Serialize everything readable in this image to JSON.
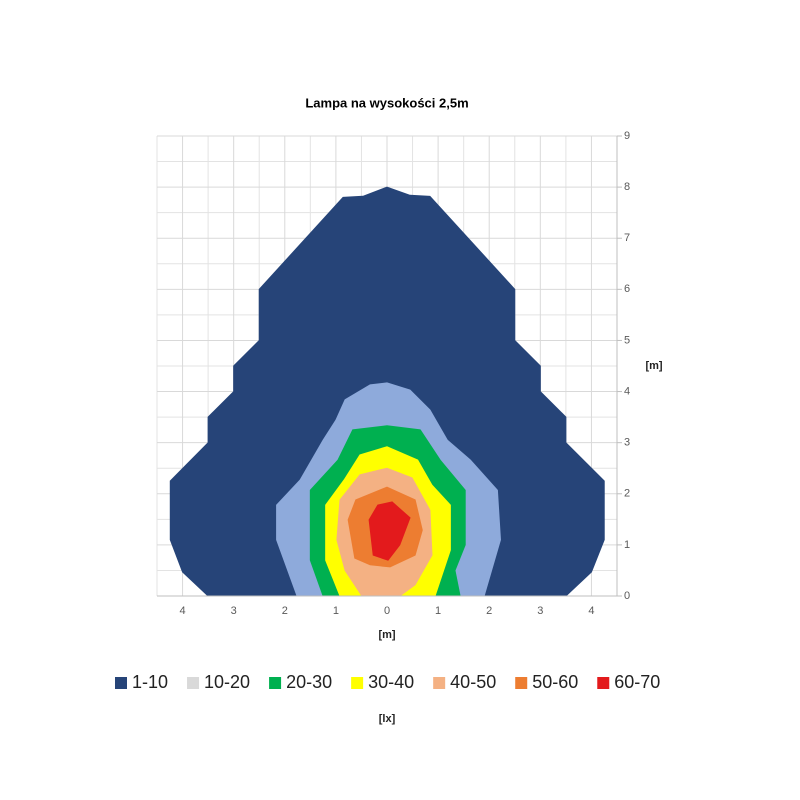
{
  "chart_data": {
    "type": "contour",
    "title": "Lampa na wysokości 2,5m",
    "x_label": "[m]",
    "y_label": "[m]",
    "legend_title": "[lx]",
    "xlim": [
      -4.5,
      4.5
    ],
    "ylim": [
      0,
      9
    ],
    "xticks": [
      {
        "value": -4,
        "label": "4"
      },
      {
        "value": -3,
        "label": "3"
      },
      {
        "value": -2,
        "label": "2"
      },
      {
        "value": -1,
        "label": "1"
      },
      0,
      1,
      2,
      3,
      4
    ],
    "yticks": [
      0,
      1,
      2,
      3,
      4,
      5,
      6,
      7,
      8,
      9
    ],
    "grid": true,
    "minor_grid": true,
    "legend": "bottom",
    "series": [
      {
        "name": "1-10",
        "color": "#264478",
        "legend_color": "#264478",
        "x": [
          -3.5,
          -4,
          -4.24,
          -4.24,
          -3.5,
          -3.5,
          -3,
          -3,
          -2.5,
          -2.5,
          -0.86,
          -0.47,
          0,
          0.45,
          0.84,
          2.5,
          2.5,
          3,
          3,
          3.5,
          3.5,
          4.25,
          4.25,
          4,
          3.5
        ],
        "y": [
          0,
          0.47,
          1.1,
          2.25,
          3,
          3.5,
          4,
          4.5,
          5,
          6,
          7.8,
          7.82,
          8,
          7.84,
          7.82,
          6,
          5,
          4.5,
          4,
          3.5,
          3,
          2.25,
          1.1,
          0.47,
          0
        ]
      },
      {
        "name": "10-20",
        "color": "#8eaadb",
        "legend_color": "#d9d9d9",
        "x": [
          -1.76,
          -2.16,
          -2.16,
          -1.7,
          -1.25,
          -1,
          -0.82,
          -0.33,
          0,
          0.45,
          0.84,
          1.18,
          1.63,
          2.16,
          2.22,
          1.9
        ],
        "y": [
          0,
          1.1,
          1.78,
          2.27,
          3.05,
          3.44,
          3.84,
          4.13,
          4.17,
          4.03,
          3.64,
          3.05,
          2.66,
          2.07,
          1.1,
          0
        ]
      },
      {
        "name": "20-30",
        "color": "#00b050",
        "legend_color": "#00b050",
        "x": [
          -1.25,
          -1.5,
          -1.5,
          -0.96,
          -0.67,
          0,
          0.65,
          1.04,
          1.53,
          1.53,
          1.33,
          1.43
        ],
        "y": [
          0,
          0.7,
          2.07,
          2.66,
          3.25,
          3.33,
          3.25,
          2.66,
          2.07,
          1.0,
          0.5,
          0
        ]
      },
      {
        "name": "30-40",
        "color": "#ffff00",
        "legend_color": "#ffff00",
        "x": [
          -0.92,
          -1.2,
          -1.2,
          -0.84,
          -0.53,
          0,
          0.6,
          0.88,
          1.24,
          1.24,
          0.94
        ],
        "y": [
          0,
          0.7,
          1.78,
          2.27,
          2.76,
          2.92,
          2.66,
          2.17,
          1.78,
          0.9,
          0
        ]
      },
      {
        "name": "40-50",
        "color": "#f4b183",
        "legend_color": "#f4b183",
        "x": [
          -0.49,
          -0.82,
          -0.98,
          -0.92,
          -0.53,
          0,
          0.49,
          0.84,
          0.88,
          0.55,
          0.25
        ],
        "y": [
          0,
          0.5,
          1.1,
          1.88,
          2.37,
          2.5,
          2.31,
          1.68,
          0.8,
          0.22,
          0
        ]
      },
      {
        "name": "50-60",
        "color": "#ed7d31",
        "legend_color": "#ed7d31",
        "x": [
          -0.63,
          -0.76,
          -0.61,
          0,
          0.55,
          0.69,
          0.55,
          0.06,
          -0.33
        ],
        "y": [
          0.74,
          1.49,
          1.88,
          2.13,
          1.88,
          1.29,
          0.8,
          0.57,
          0.61
        ]
      },
      {
        "name": "60-70",
        "color": "#e31a1c",
        "legend_color": "#e31a1c",
        "x": [
          -0.27,
          -0.35,
          -0.18,
          0.1,
          0.45,
          0.25,
          0.02
        ],
        "y": [
          0.8,
          1.49,
          1.78,
          1.84,
          1.53,
          1.0,
          0.7
        ]
      }
    ]
  }
}
